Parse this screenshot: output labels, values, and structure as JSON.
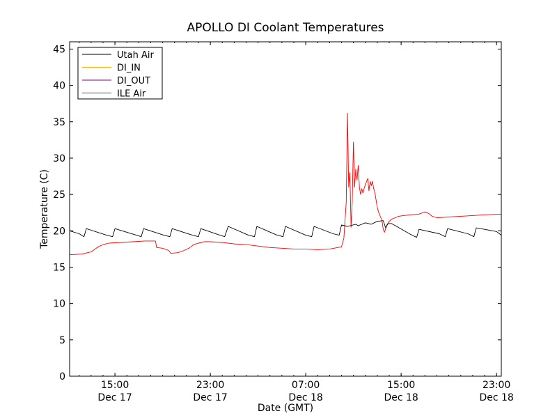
{
  "chart_data": {
    "type": "line",
    "title": "APOLLO DI Coolant Temperatures",
    "xlabel": "Date (GMT)",
    "ylabel": "Temperature (C)",
    "x_unit": "hours since Dec 17 00:00 GMT",
    "xlim": [
      11.2,
      47.4
    ],
    "ylim": [
      0,
      46
    ],
    "yticks": [
      0,
      5,
      10,
      15,
      20,
      25,
      30,
      35,
      40,
      45
    ],
    "xticks": [
      {
        "value": 15,
        "time": "15:00",
        "date": "Dec 17"
      },
      {
        "value": 23,
        "time": "23:00",
        "date": "Dec 17"
      },
      {
        "value": 31,
        "time": "07:00",
        "date": "Dec 18"
      },
      {
        "value": 39,
        "time": "15:00",
        "date": "Dec 18"
      },
      {
        "value": 47,
        "time": "23:00",
        "date": "Dec 18"
      }
    ],
    "legend_position": "top-left",
    "series": [
      {
        "name": "Utah Air",
        "color": "#000000",
        "x": [
          11.2,
          12.0,
          12.4,
          12.6,
          14.3,
          14.8,
          15.0,
          16.8,
          17.2,
          17.4,
          19.1,
          19.6,
          19.8,
          21.5,
          22.0,
          22.2,
          23.8,
          24.2,
          24.5,
          26.2,
          26.7,
          26.9,
          28.6,
          29.1,
          29.3,
          31.0,
          31.5,
          31.7,
          33.3,
          33.8,
          34.0,
          34.5,
          35.2,
          35.4,
          36.0,
          36.5,
          37.0,
          37.5,
          37.7,
          37.9,
          38.2,
          39.8,
          40.3,
          40.5,
          42.2,
          42.7,
          42.9,
          44.6,
          45.1,
          45.3,
          47.0,
          47.4
        ],
        "y": [
          20.0,
          19.6,
          19.2,
          20.3,
          19.4,
          19.2,
          20.3,
          19.4,
          19.2,
          20.3,
          19.4,
          19.2,
          20.3,
          19.4,
          19.2,
          20.3,
          19.4,
          19.2,
          20.6,
          19.4,
          19.2,
          20.6,
          19.4,
          19.2,
          20.6,
          19.4,
          19.2,
          20.6,
          19.6,
          19.4,
          20.8,
          20.6,
          20.9,
          20.7,
          21.1,
          20.9,
          21.3,
          21.4,
          20.4,
          21.0,
          21.0,
          19.5,
          19.1,
          20.2,
          19.6,
          19.2,
          20.3,
          19.6,
          19.2,
          20.4,
          19.9,
          19.4
        ]
      },
      {
        "name": "DI_IN",
        "color": "#ffa500",
        "x": [],
        "y": []
      },
      {
        "name": "DI_OUT",
        "color": "#800080",
        "x": [],
        "y": []
      },
      {
        "name": "ILE Air",
        "color": "#ff0000",
        "x": [
          11.2,
          12.2,
          13.0,
          13.6,
          14.0,
          14.5,
          15.5,
          16.5,
          17.5,
          18.4,
          18.5,
          19.0,
          19.5,
          19.7,
          20.3,
          20.8,
          21.2,
          21.6,
          22.0,
          22.5,
          23.0,
          24.0,
          25.0,
          26.0,
          27.0,
          28.0,
          29.0,
          30.0,
          31.0,
          32.0,
          33.0,
          34.0,
          34.2,
          34.4,
          34.5,
          34.6,
          34.7,
          34.8,
          34.9,
          35.0,
          35.1,
          35.2,
          35.3,
          35.4,
          35.5,
          35.6,
          35.7,
          35.8,
          35.9,
          36.0,
          36.1,
          36.2,
          36.3,
          36.4,
          36.5,
          36.6,
          36.7,
          36.8,
          36.9,
          37.0,
          37.1,
          37.2,
          37.3,
          37.4,
          37.5,
          37.6,
          37.8,
          38.0,
          38.2,
          38.5,
          38.8,
          39.2,
          39.8,
          40.5,
          41.0,
          41.3,
          41.6,
          42.0,
          43.0,
          44.0,
          45.0,
          46.0,
          47.4
        ],
        "y": [
          16.7,
          16.8,
          17.1,
          17.8,
          18.1,
          18.3,
          18.4,
          18.5,
          18.6,
          18.6,
          17.7,
          17.6,
          17.3,
          16.9,
          17.0,
          17.3,
          17.6,
          18.1,
          18.3,
          18.5,
          18.5,
          18.4,
          18.2,
          18.1,
          17.9,
          17.7,
          17.6,
          17.5,
          17.5,
          17.4,
          17.5,
          17.8,
          19.0,
          24.0,
          36.2,
          26.0,
          28.0,
          20.5,
          24.0,
          32.2,
          26.0,
          28.5,
          27.0,
          29.0,
          26.0,
          25.0,
          25.8,
          25.2,
          25.8,
          26.4,
          26.8,
          27.2,
          25.5,
          26.8,
          26.2,
          26.8,
          25.8,
          25.2,
          24.2,
          23.2,
          22.6,
          22.2,
          21.8,
          21.4,
          20.2,
          19.8,
          20.8,
          21.3,
          21.6,
          21.8,
          22.0,
          22.1,
          22.2,
          22.3,
          22.6,
          22.4,
          22.0,
          21.8,
          21.9,
          22.0,
          22.1,
          22.2,
          22.3
        ]
      }
    ]
  }
}
